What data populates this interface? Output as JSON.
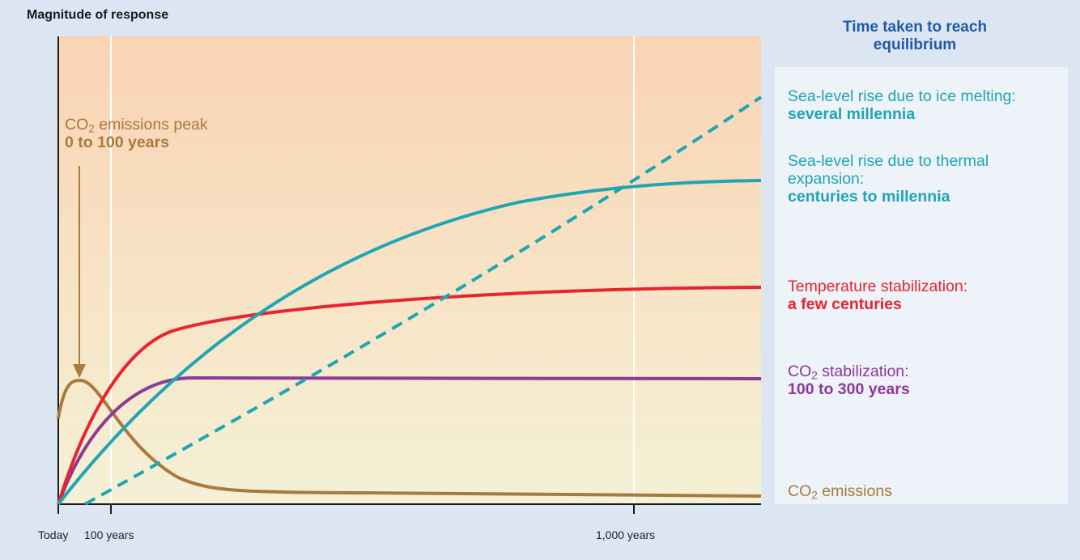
{
  "chart_data": {
    "type": "line",
    "ylabel": "Magnitude of response",
    "xticks": [
      "Today",
      "100 years",
      "1,000  years"
    ],
    "legend_title": "Time taken to reach equilibrium",
    "series": [
      {
        "name": "Sea-level rise due to ice melting",
        "duration": "several millennia",
        "color": "#1fa5b4",
        "dash": true
      },
      {
        "name": "Sea-level rise due to thermal expansion",
        "duration": "centuries to millennia",
        "color": "#1fa5b4",
        "dash": false
      },
      {
        "name": "Temperature stabilization",
        "duration": "a few centuries",
        "color": "#e8242e",
        "dash": false
      },
      {
        "name": "CO2 stabilization",
        "duration": "100 to 300 years",
        "color": "#8b3a97",
        "dash": false
      },
      {
        "name": "CO2 emissions",
        "duration": "",
        "color": "#a97a3c",
        "dash": false
      }
    ],
    "annotation": {
      "line1": "CO2 emissions peak",
      "line2": "0 to 100 years"
    }
  },
  "labels": {
    "ylabel": "Magnitude of response",
    "panel_title": "Time taken to reach equilibrium",
    "tick_today": "Today",
    "tick_100": "100 years",
    "tick_1000": "1,000  years",
    "ice_line1": "Sea-level rise due to ice melting:",
    "ice_line2": "several millennia",
    "thermal_line1a": "Sea-level rise due to thermal",
    "thermal_line1b": "expansion:",
    "thermal_line2": "centuries to millennia",
    "temp_line1": "Temperature stabilization:",
    "temp_line2": "a few centuries",
    "co2stab_prefix": "CO",
    "co2stab_sub": "2",
    "co2stab_suffix": " stabilization:",
    "co2stab_line2": "100 to 300 years",
    "co2em_prefix": "CO",
    "co2em_sub": "2",
    "co2em_suffix": " emissions",
    "peak_prefix": "CO",
    "peak_sub": "2",
    "peak_suffix": " emissions peak",
    "peak_line2": "0 to 100 years"
  }
}
